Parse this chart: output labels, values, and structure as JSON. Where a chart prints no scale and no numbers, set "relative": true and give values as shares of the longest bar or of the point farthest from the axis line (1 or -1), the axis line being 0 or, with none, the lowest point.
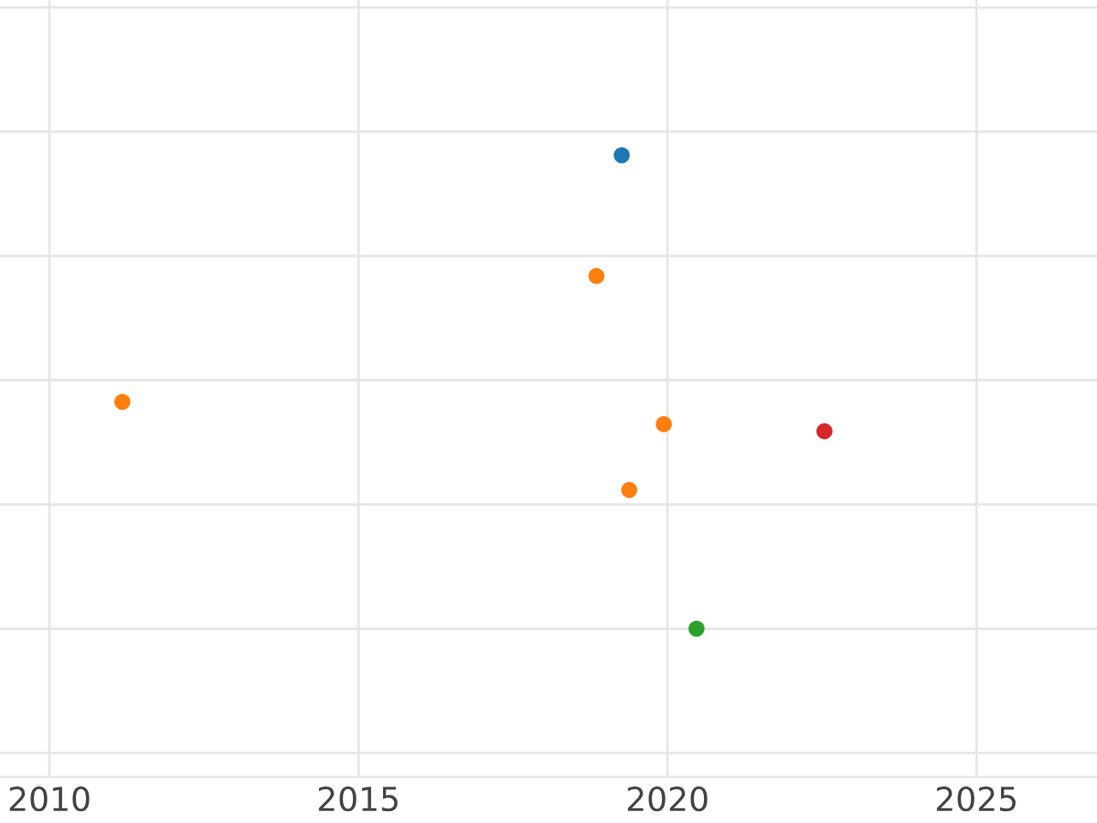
{
  "chart_data": {
    "type": "scatter",
    "relative": true,
    "x": [
      2019.26,
      2018.85,
      2011.18,
      2019.94,
      2019.38,
      2022.54,
      2020.47
    ],
    "values": [
      1,
      0.745,
      0.479,
      0.432,
      0.293,
      0.417,
      0
    ],
    "colors": [
      "#1f77b4",
      "#ff7f0e",
      "#ff7f0e",
      "#ff7f0e",
      "#ff7f0e",
      "#d62728",
      "#2ca02c"
    ],
    "xlim": [
      2009.2,
      2026.95
    ],
    "xticks": [
      2010,
      2015,
      2020,
      2025
    ],
    "grid": true,
    "tick_labels": "x",
    "marker": "circle"
  }
}
